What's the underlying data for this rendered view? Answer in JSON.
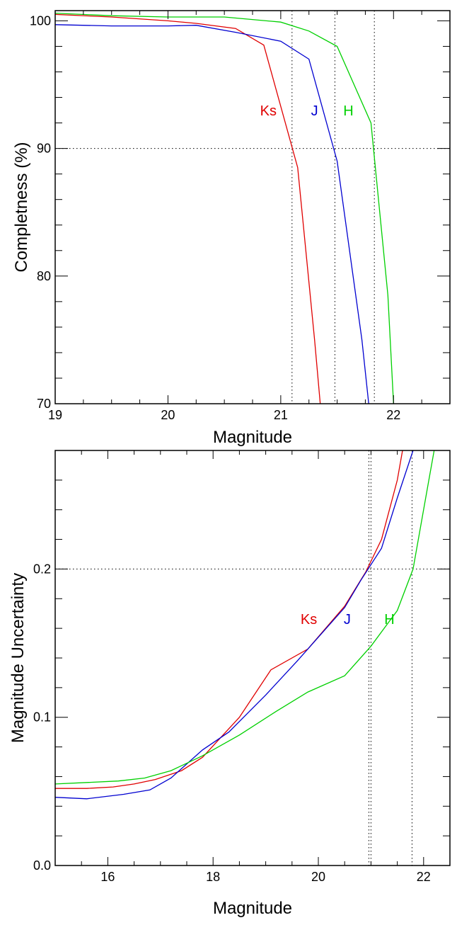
{
  "chart_data": [
    {
      "type": "line",
      "xlabel": "Magnitude",
      "ylabel": "Completness (%)",
      "xlim": [
        19,
        22.5
      ],
      "ylim": [
        70,
        100.8
      ],
      "xticks": [
        {
          "value": 19,
          "label": "19"
        },
        {
          "value": 20,
          "label": "20"
        },
        {
          "value": 21,
          "label": "21"
        },
        {
          "value": 22,
          "label": "22"
        }
      ],
      "yticks": [
        {
          "value": 70,
          "label": "70"
        },
        {
          "value": 80,
          "label": "80"
        },
        {
          "value": 90,
          "label": "90"
        },
        {
          "value": 100,
          "label": "100"
        }
      ],
      "x_minor_step": 0.25,
      "y_minor_step": 2,
      "reference_lines": {
        "horizontal": [
          90
        ],
        "vertical": [
          21.1,
          21.48,
          21.83
        ]
      },
      "series": [
        {
          "name": "Ks",
          "color": "#e00000",
          "label_at": [
            20.89,
            92.6
          ],
          "x": [
            19.0,
            19.5,
            20.0,
            20.25,
            20.6,
            20.85,
            21.15,
            21.3,
            21.35
          ],
          "y": [
            100.5,
            100.3,
            100.0,
            99.8,
            99.4,
            98.1,
            88.5,
            75.0,
            70.0
          ]
        },
        {
          "name": "J",
          "color": "#0000d0",
          "label_at": [
            21.3,
            92.6
          ],
          "x": [
            19.0,
            19.5,
            20.0,
            20.25,
            20.6,
            21.0,
            21.25,
            21.5,
            21.72,
            21.78
          ],
          "y": [
            99.7,
            99.6,
            99.6,
            99.65,
            99.1,
            98.4,
            97.0,
            89.0,
            75.0,
            70.0
          ]
        },
        {
          "name": "H",
          "color": "#00d000",
          "label_at": [
            21.6,
            92.6
          ],
          "x": [
            19.0,
            19.5,
            20.0,
            20.5,
            21.0,
            21.25,
            21.5,
            21.8,
            21.95,
            22.0
          ],
          "y": [
            100.6,
            100.4,
            100.3,
            100.3,
            99.9,
            99.2,
            98.0,
            92.0,
            78.5,
            70.0
          ]
        }
      ]
    },
    {
      "type": "line",
      "xlabel": "Magnitude",
      "ylabel": "Magnitude Uncertainty",
      "xlim": [
        15,
        22.5
      ],
      "ylim": [
        0,
        0.28
      ],
      "xticks": [
        {
          "value": 16,
          "label": "16"
        },
        {
          "value": 18,
          "label": "18"
        },
        {
          "value": 20,
          "label": "20"
        },
        {
          "value": 22,
          "label": "22"
        }
      ],
      "yticks": [
        {
          "value": 0.0,
          "label": "0.0"
        },
        {
          "value": 0.1,
          "label": "0.1"
        },
        {
          "value": 0.2,
          "label": "0.2"
        }
      ],
      "x_minor_step": 0.5,
      "y_minor_step": 0.02,
      "reference_lines": {
        "horizontal": [
          0.2
        ],
        "vertical": [
          20.96,
          21.0,
          21.78
        ]
      },
      "series": [
        {
          "name": "Ks",
          "color": "#e00000",
          "label_at": [
            19.82,
            0.163
          ],
          "x": [
            15.0,
            15.6,
            16.1,
            16.5,
            16.9,
            17.4,
            17.8,
            18.5,
            19.1,
            19.8,
            20.5,
            20.9,
            21.2,
            21.5,
            21.6
          ],
          "y": [
            0.052,
            0.052,
            0.053,
            0.055,
            0.058,
            0.064,
            0.073,
            0.1,
            0.132,
            0.146,
            0.175,
            0.198,
            0.22,
            0.26,
            0.28
          ]
        },
        {
          "name": "J",
          "color": "#0000d0",
          "label_at": [
            20.55,
            0.163
          ],
          "x": [
            15.0,
            15.6,
            16.3,
            16.8,
            17.2,
            17.8,
            18.3,
            19.0,
            19.6,
            20.1,
            20.5,
            20.8,
            21.2,
            21.5,
            21.8
          ],
          "y": [
            0.046,
            0.045,
            0.048,
            0.051,
            0.059,
            0.078,
            0.09,
            0.115,
            0.138,
            0.158,
            0.174,
            0.192,
            0.214,
            0.248,
            0.28
          ]
        },
        {
          "name": "H",
          "color": "#00d000",
          "label_at": [
            21.35,
            0.163
          ],
          "x": [
            15.0,
            15.6,
            16.2,
            16.7,
            17.2,
            17.8,
            18.5,
            19.2,
            19.8,
            20.5,
            21.0,
            21.5,
            21.8,
            22.1,
            22.2
          ],
          "y": [
            0.055,
            0.056,
            0.057,
            0.059,
            0.064,
            0.074,
            0.088,
            0.104,
            0.117,
            0.128,
            0.148,
            0.172,
            0.2,
            0.26,
            0.28
          ]
        }
      ]
    }
  ]
}
